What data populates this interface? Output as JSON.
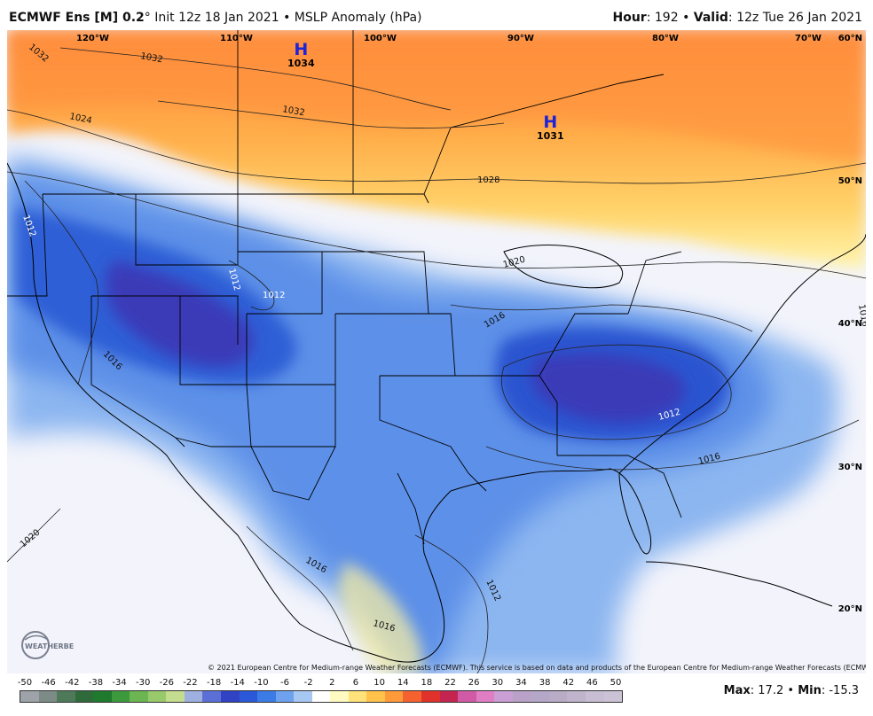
{
  "header": {
    "model": "ECMWF Ens [M] 0.2",
    "degree": "°",
    "init": "Init 12z 18 Jan 2021",
    "bullet": "•",
    "field": "MSLP Anomaly (hPa)",
    "hour_label": "Hour",
    "hour_value": ": 192",
    "valid_label": "Valid",
    "valid_value": ": 12z Tue 26 Jan 2021"
  },
  "map": {
    "lon_labels": [
      "120°W",
      "110°W",
      "100°W",
      "90°W",
      "80°W",
      "70°W"
    ],
    "lat_labels": [
      "60°N",
      "50°N",
      "40°N",
      "30°N",
      "20°N"
    ],
    "pressure_centers": [
      {
        "symbol": "H",
        "value": "1034"
      },
      {
        "symbol": "H",
        "value": "1031"
      }
    ],
    "isobar_labels": [
      "1032",
      "1032",
      "1032",
      "1024",
      "1028",
      "1020",
      "1012",
      "1012",
      "1012",
      "1012",
      "1016",
      "1016",
      "1016",
      "1016",
      "1016",
      "1012",
      "1020",
      "1016",
      "1012",
      "1016"
    ],
    "colors": {
      "strong_positive": "#ff8a3a",
      "positive": "#ffb347",
      "weak_positive": "#fff3a0",
      "neutral": "#f3f4fb",
      "weak_negative": "#8cb6f0",
      "negative": "#4f86e6",
      "strong_negative": "#2448c7",
      "deepest_negative": "#3a3ab8"
    }
  },
  "copyright": "© 2021 European Centre for Medium-range Weather Forecasts (ECMWF). This service is based on data and products of the European Centre for Medium-range Weather Forecasts (ECMWF).",
  "logo": "WEATHERBELL",
  "colorbar": {
    "ticks": [
      "-50",
      "-46",
      "-42",
      "-38",
      "-34",
      "-30",
      "-26",
      "-22",
      "-18",
      "-14",
      "-10",
      "-6",
      "-2",
      "2",
      "6",
      "10",
      "14",
      "18",
      "22",
      "26",
      "30",
      "34",
      "38",
      "42",
      "46",
      "50"
    ],
    "colors": [
      "#9da3a8",
      "#7c8b86",
      "#4e7a5a",
      "#2f6b3a",
      "#1f7a2e",
      "#3c9a3c",
      "#6bb552",
      "#98c96b",
      "#c4dc8e",
      "#9eb0e0",
      "#5b6fd6",
      "#3142c4",
      "#2a58d8",
      "#3b7be6",
      "#6ea2ee",
      "#a8c8f4",
      "#ffffff",
      "#fffac2",
      "#ffe27a",
      "#ffc24a",
      "#ff9a3a",
      "#f5622f",
      "#e0322a",
      "#c42550",
      "#d05aa6",
      "#e07ec4",
      "#c99fd6",
      "#b9a1c8",
      "#b5a7c8",
      "#b8acc6",
      "#c0b4cc",
      "#c8bed4",
      "#ccc2d6"
    ]
  },
  "stats": {
    "max_label": "Max",
    "max_value": ": 17.2",
    "min_label": "Min",
    "min_value": ": -15.3",
    "bullet": "•"
  }
}
